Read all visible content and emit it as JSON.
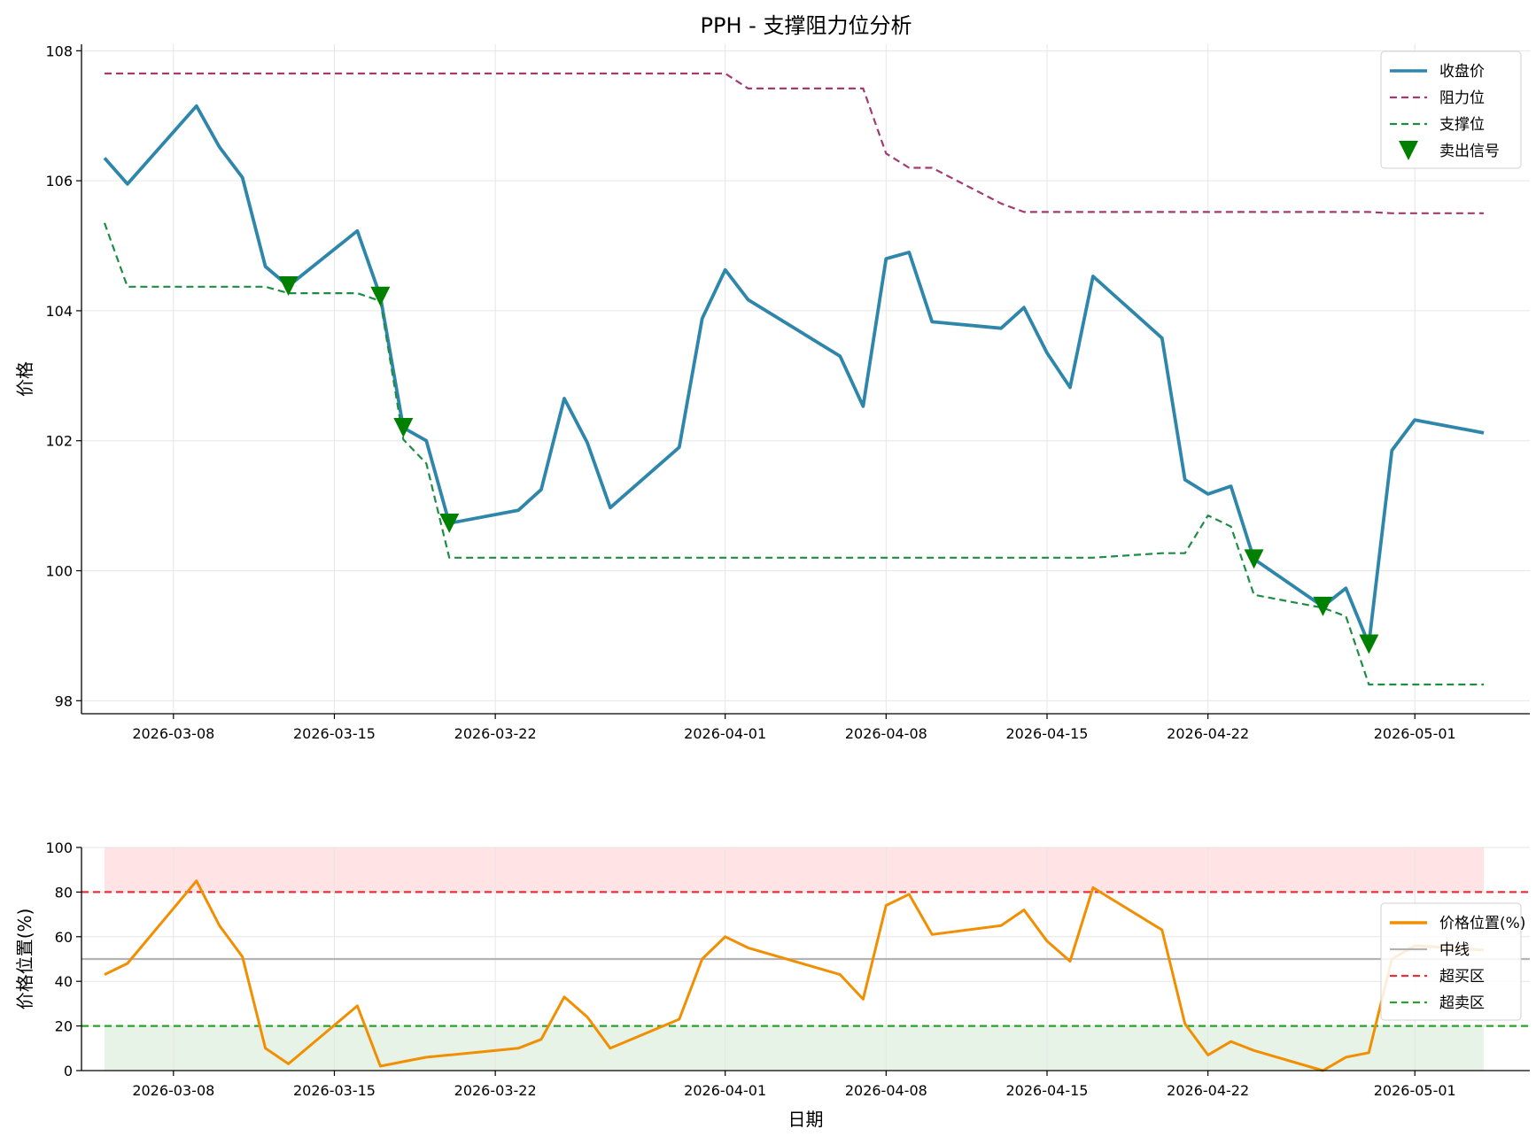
{
  "title": "PPH - 支撑阻力位分析",
  "chart_data": [
    {
      "type": "line",
      "ylabel": "价格",
      "xlabel": "",
      "ylim": [
        97.8,
        108.1
      ],
      "yticks": [
        98,
        100,
        102,
        104,
        106,
        108
      ],
      "xlim": [
        "2026-03-04",
        "2026-05-06"
      ],
      "xticks": [
        "2026-03-08",
        "2026-03-15",
        "2026-03-22",
        "2026-04-01",
        "2026-04-08",
        "2026-04-15",
        "2026-04-22",
        "2026-05-01"
      ],
      "grid": true,
      "legend_position": "top-right",
      "dates": [
        "2026-03-05",
        "2026-03-06",
        "2026-03-09",
        "2026-03-10",
        "2026-03-11",
        "2026-03-12",
        "2026-03-13",
        "2026-03-16",
        "2026-03-17",
        "2026-03-18",
        "2026-03-19",
        "2026-03-20",
        "2026-03-23",
        "2026-03-24",
        "2026-03-25",
        "2026-03-26",
        "2026-03-27",
        "2026-03-30",
        "2026-03-31",
        "2026-04-01",
        "2026-04-02",
        "2026-04-06",
        "2026-04-07",
        "2026-04-08",
        "2026-04-09",
        "2026-04-10",
        "2026-04-13",
        "2026-04-14",
        "2026-04-15",
        "2026-04-16",
        "2026-04-17",
        "2026-04-20",
        "2026-04-21",
        "2026-04-22",
        "2026-04-23",
        "2026-04-24",
        "2026-04-27",
        "2026-04-28",
        "2026-04-29",
        "2026-04-30",
        "2026-05-01",
        "2026-05-04"
      ],
      "series": [
        {
          "name": "收盘价",
          "color": "#2e86ab",
          "style": "solid",
          "values": [
            106.35,
            105.95,
            107.15,
            106.52,
            106.05,
            104.68,
            104.38,
            105.23,
            104.22,
            102.2,
            102.0,
            100.73,
            100.93,
            101.25,
            102.65,
            101.97,
            100.97,
            101.9,
            103.88,
            104.63,
            104.17,
            103.3,
            102.53,
            104.8,
            104.9,
            103.83,
            103.73,
            104.05,
            103.35,
            102.82,
            104.53,
            103.58,
            101.4,
            101.18,
            101.3,
            100.18,
            99.45,
            99.73,
            98.87,
            101.85,
            102.32,
            102.12
          ]
        },
        {
          "name": "阻力位",
          "color": "#a23b72",
          "style": "dashed",
          "values": [
            107.65,
            107.65,
            107.65,
            107.65,
            107.65,
            107.65,
            107.65,
            107.65,
            107.65,
            107.65,
            107.65,
            107.65,
            107.65,
            107.65,
            107.65,
            107.65,
            107.65,
            107.65,
            107.65,
            107.65,
            107.42,
            107.42,
            107.42,
            106.42,
            106.2,
            106.2,
            105.65,
            105.52,
            105.52,
            105.52,
            105.52,
            105.52,
            105.52,
            105.52,
            105.52,
            105.52,
            105.52,
            105.52,
            105.52,
            105.5,
            105.5,
            105.5
          ]
        },
        {
          "name": "支撑位",
          "color": "#1e8c45",
          "style": "dashed",
          "values": [
            105.35,
            104.37,
            104.37,
            104.37,
            104.37,
            104.37,
            104.27,
            104.27,
            104.15,
            102.02,
            101.65,
            100.2,
            100.2,
            100.2,
            100.2,
            100.2,
            100.2,
            100.2,
            100.2,
            100.2,
            100.2,
            100.2,
            100.2,
            100.2,
            100.2,
            100.2,
            100.2,
            100.2,
            100.2,
            100.2,
            100.2,
            100.27,
            100.27,
            100.85,
            100.68,
            99.63,
            99.43,
            99.3,
            98.25,
            98.25,
            98.25,
            98.25
          ]
        }
      ],
      "signals": {
        "name": "卖出信号",
        "color": "#008000",
        "points": [
          {
            "date": "2026-03-13",
            "value": 104.38
          },
          {
            "date": "2026-03-17",
            "value": 104.22
          },
          {
            "date": "2026-03-18",
            "value": 102.2
          },
          {
            "date": "2026-03-20",
            "value": 100.73
          },
          {
            "date": "2026-04-24",
            "value": 100.18
          },
          {
            "date": "2026-04-27",
            "value": 99.45
          },
          {
            "date": "2026-04-29",
            "value": 98.87
          }
        ]
      }
    },
    {
      "type": "line",
      "ylabel": "价格位置(%)",
      "xlabel": "日期",
      "ylim": [
        0,
        100
      ],
      "yticks": [
        0,
        20,
        40,
        60,
        80,
        100
      ],
      "xlim": [
        "2026-03-04",
        "2026-05-06"
      ],
      "xticks": [
        "2026-03-08",
        "2026-03-15",
        "2026-03-22",
        "2026-04-01",
        "2026-04-08",
        "2026-04-15",
        "2026-04-22",
        "2026-05-01"
      ],
      "grid": true,
      "legend_position": "right",
      "dates": [
        "2026-03-05",
        "2026-03-06",
        "2026-03-09",
        "2026-03-10",
        "2026-03-11",
        "2026-03-12",
        "2026-03-13",
        "2026-03-16",
        "2026-03-17",
        "2026-03-18",
        "2026-03-19",
        "2026-03-20",
        "2026-03-23",
        "2026-03-24",
        "2026-03-25",
        "2026-03-26",
        "2026-03-27",
        "2026-03-30",
        "2026-03-31",
        "2026-04-01",
        "2026-04-02",
        "2026-04-06",
        "2026-04-07",
        "2026-04-08",
        "2026-04-09",
        "2026-04-10",
        "2026-04-13",
        "2026-04-14",
        "2026-04-15",
        "2026-04-16",
        "2026-04-17",
        "2026-04-20",
        "2026-04-21",
        "2026-04-22",
        "2026-04-23",
        "2026-04-24",
        "2026-04-27",
        "2026-04-28",
        "2026-04-29",
        "2026-04-30",
        "2026-05-01",
        "2026-05-04"
      ],
      "series": [
        {
          "name": "价格位置(%)",
          "color": "#f18f01",
          "style": "solid",
          "values": [
            43,
            48,
            85,
            65,
            51,
            10,
            3,
            29,
            2,
            4,
            6,
            7,
            10,
            14,
            33,
            24,
            10,
            23,
            50,
            60,
            55,
            43,
            32,
            74,
            79,
            61,
            65,
            72,
            58,
            49,
            82,
            63,
            21,
            7,
            13,
            9,
            0,
            6,
            8,
            50,
            56,
            54
          ]
        }
      ],
      "hlines": [
        {
          "name": "中线",
          "value": 50,
          "color": "#b3b3b3",
          "style": "solid"
        },
        {
          "name": "超买区",
          "value": 80,
          "color": "#e8303a",
          "style": "dashed"
        },
        {
          "name": "超卖区",
          "value": 20,
          "color": "#2ca02c",
          "style": "dashed"
        }
      ],
      "bands": [
        {
          "from": 80,
          "to": 100,
          "color": "#ffc0c5"
        },
        {
          "from": 0,
          "to": 20,
          "color": "#c8e4c8"
        }
      ]
    }
  ]
}
